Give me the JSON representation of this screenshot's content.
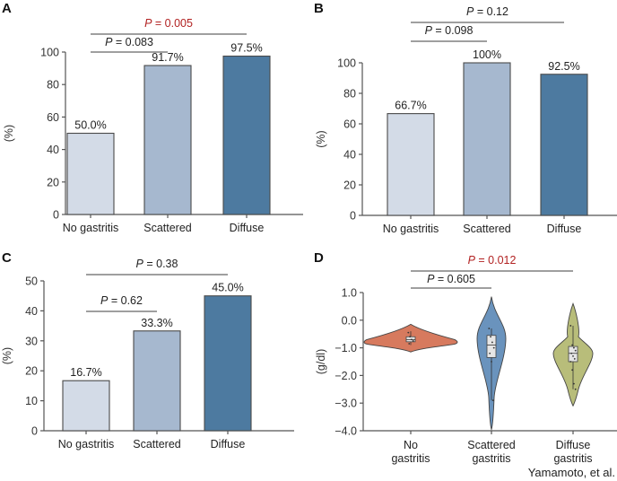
{
  "credit": "Yamamoto, et al.",
  "colors": {
    "bar_light": "#d3dbe7",
    "bar_mid": "#a6b8cf",
    "bar_dark": "#4d7aa0",
    "bar_stroke": "#555555",
    "sig_text": "#b22222",
    "normal_text": "#222222",
    "violin_no": "#d77a5e",
    "violin_scattered": "#6a93bd",
    "violin_diffuse": "#b8bd7a"
  },
  "chart_data": [
    {
      "panel": "A",
      "type": "bar",
      "categories": [
        "No gastritis",
        "Scattered",
        "Diffuse"
      ],
      "values": [
        50.0,
        91.7,
        97.5
      ],
      "data_labels": [
        "50.0%",
        "91.7%",
        "97.5%"
      ],
      "ylabel": "(%)",
      "ylim": [
        0,
        100
      ],
      "yticks": [
        "0",
        "20",
        "40",
        "60",
        "80",
        "100"
      ],
      "comparisons": [
        {
          "from": 0,
          "to": 2,
          "p_prefix": "P",
          "p_text": " = 0.005",
          "significant": true
        },
        {
          "from": 0,
          "to": 1,
          "p_prefix": "P",
          "p_text": " = 0.083",
          "significant": false
        }
      ]
    },
    {
      "panel": "B",
      "type": "bar",
      "categories": [
        "No gastritis",
        "Scattered",
        "Diffuse"
      ],
      "values": [
        66.7,
        100,
        92.5
      ],
      "data_labels": [
        "66.7%",
        "100%",
        "92.5%"
      ],
      "ylabel": "(%)",
      "ylim": [
        0,
        100
      ],
      "yticks": [
        "0",
        "20",
        "40",
        "60",
        "80",
        "100"
      ],
      "comparisons": [
        {
          "from": 0,
          "to": 2,
          "p_prefix": "P",
          "p_text": " = 0.12",
          "significant": false
        },
        {
          "from": 0,
          "to": 1,
          "p_prefix": "P",
          "p_text": " = 0.098",
          "significant": false
        }
      ]
    },
    {
      "panel": "C",
      "type": "bar",
      "categories": [
        "No gastritis",
        "Scattered",
        "Diffuse"
      ],
      "values": [
        16.7,
        33.3,
        45.0
      ],
      "data_labels": [
        "16.7%",
        "33.3%",
        "45.0%"
      ],
      "ylabel": "(%)",
      "ylim": [
        0,
        50
      ],
      "yticks": [
        "0",
        "10",
        "20",
        "30",
        "40",
        "50"
      ],
      "comparisons": [
        {
          "from": 0,
          "to": 2,
          "p_prefix": "P",
          "p_text": " = 0.38",
          "significant": false
        },
        {
          "from": 0,
          "to": 1,
          "p_prefix": "P",
          "p_text": " = 0.62",
          "significant": false
        }
      ]
    },
    {
      "panel": "D",
      "type": "violin",
      "categories": [
        [
          "No",
          "gastritis"
        ],
        [
          "Scattered",
          "gastritis"
        ],
        [
          "Diffuse",
          "gastritis"
        ]
      ],
      "ylabel": "(g/dl)",
      "ylim": [
        -4.0,
        1.0
      ],
      "yticks": [
        "1.0",
        "0.0",
        "−1.0",
        "−2.0",
        "−3.0",
        "−4.0"
      ],
      "ytick_values": [
        1.0,
        0.0,
        -1.0,
        -2.0,
        -3.0,
        -4.0
      ],
      "groups": [
        {
          "name": "No gastritis",
          "min": -1.15,
          "max": -0.15,
          "mode": -0.8,
          "q1": -0.78,
          "median": -0.7,
          "q3": -0.6,
          "whisker_low": -0.9,
          "whisker_high": -0.4,
          "points": [
            -0.45,
            -0.6,
            -0.7,
            -0.75,
            -0.85
          ]
        },
        {
          "name": "Scattered gastritis",
          "min": -3.95,
          "max": 0.85,
          "mode": -0.4,
          "q1": -1.35,
          "median": -0.9,
          "q3": -0.55,
          "whisker_low": -2.9,
          "whisker_high": -0.3,
          "points": [
            -0.3,
            -0.6,
            -0.8,
            -1.0,
            -1.2,
            -1.5,
            -2.9
          ]
        },
        {
          "name": "Diffuse gastritis",
          "min": -3.1,
          "max": 0.6,
          "mode": -1.2,
          "q1": -1.5,
          "median": -1.2,
          "q3": -0.95,
          "whisker_low": -2.5,
          "whisker_high": -0.2,
          "points": [
            -0.2,
            -0.9,
            -1.0,
            -1.1,
            -1.2,
            -1.3,
            -1.4,
            -1.5,
            -1.8,
            -2.3,
            -2.5
          ]
        }
      ],
      "comparisons": [
        {
          "from": 0,
          "to": 2,
          "p_prefix": "P",
          "p_text": " = 0.012",
          "significant": true
        },
        {
          "from": 0,
          "to": 1,
          "p_prefix": "P",
          "p_text": " = 0.605",
          "significant": false
        }
      ]
    }
  ]
}
